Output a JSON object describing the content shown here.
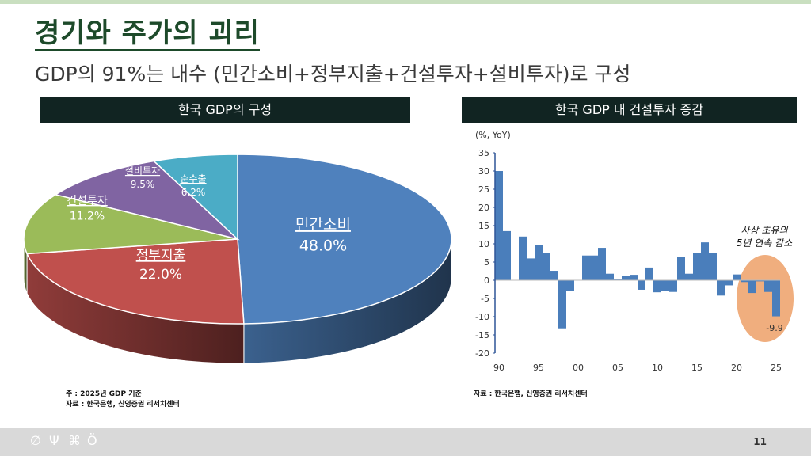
{
  "title": "경기와 주가의 괴리",
  "subtitle": "GDP의 91%는 내수 (민간소비+정부지출+건설투자+설비투자)로 구성",
  "left_panel": {
    "header": "한국 GDP의 구성",
    "notes": [
      "주 : 2025년 GDP 기준",
      "자료 : 한국은행, 신영증권 리서치센터"
    ]
  },
  "right_panel": {
    "header": "한국 GDP 내 건설투자 증감",
    "notes": [
      "자료 : 한국은행, 신영증권 리서치센터"
    ]
  },
  "footer": {
    "page": "11",
    "icons": [
      "leaf-icon",
      "sprout-icon",
      "flower-icon",
      "apple-icon"
    ]
  },
  "chart_data": [
    {
      "type": "pie",
      "title": "한국 GDP의 구성",
      "slices": [
        {
          "label": "민간소비",
          "value": 48.0,
          "text": "48.0%",
          "color": "#4f81bd"
        },
        {
          "label": "정부지출",
          "value": 22.0,
          "text": "22.0%",
          "color": "#c0504d"
        },
        {
          "label": "건설투자",
          "value": 11.2,
          "text": "11.2%",
          "color": "#9bbb59"
        },
        {
          "label": "설비투자",
          "value": 9.5,
          "text": "9.5%",
          "color": "#8064a2"
        },
        {
          "label": "순수출",
          "value": 6.2,
          "text": "6.2%",
          "color": "#4bacc6"
        }
      ]
    },
    {
      "type": "bar",
      "title": "한국 GDP 내 건설투자 증감",
      "ylabel": "(%, YoY)",
      "ylim": [
        -20,
        35
      ],
      "yticks": [
        "35",
        "30",
        "25",
        "20",
        "15",
        "10",
        "5",
        "0",
        "-5",
        "-10",
        "-15",
        "-20"
      ],
      "xticks": [
        "90",
        "95",
        "00",
        "05",
        "10",
        "15",
        "20",
        "25"
      ],
      "x": [
        1990,
        1991,
        1992,
        1993,
        1994,
        1995,
        1996,
        1997,
        1998,
        1999,
        2000,
        2001,
        2002,
        2003,
        2004,
        2005,
        2006,
        2007,
        2008,
        2009,
        2010,
        2011,
        2012,
        2013,
        2014,
        2015,
        2016,
        2017,
        2018,
        2019,
        2020,
        2021,
        2022,
        2023,
        2024,
        2025
      ],
      "values": [
        30.0,
        13.5,
        0.1,
        12.0,
        6.0,
        9.7,
        7.5,
        2.6,
        -13.2,
        -3.0,
        0.0,
        6.8,
        6.8,
        8.9,
        1.8,
        0.2,
        1.2,
        1.5,
        -2.6,
        3.5,
        -3.3,
        -2.9,
        -3.2,
        6.4,
        1.8,
        7.5,
        10.4,
        7.6,
        -4.2,
        -1.4,
        1.6,
        -0.5,
        -3.5,
        -0.3,
        -3.2,
        -9.9
      ],
      "color": "#4a7ebb",
      "highlight_color": "#f0ae7e",
      "annotations": [
        "사상 초유의",
        "5년 연속 감소"
      ],
      "last_label": "-9.9"
    }
  ]
}
